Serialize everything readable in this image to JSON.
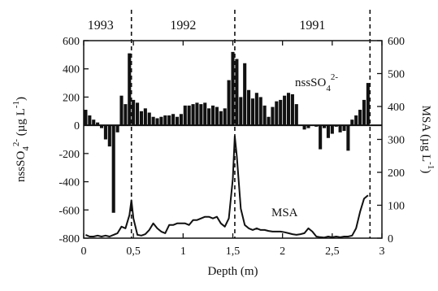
{
  "chart_data": {
    "type": "bar+line",
    "x_label": "Depth (m)",
    "x_ticks": [
      "0",
      "0,5",
      "1",
      "1,5",
      "2",
      "2,5",
      "3"
    ],
    "x_tick_values": [
      0,
      0.5,
      1,
      1.5,
      2,
      2.5,
      3
    ],
    "xlim": [
      0,
      3
    ],
    "left_axis": {
      "label_parts": [
        "nssSO",
        "4",
        "2-",
        " (µg L",
        "-1",
        ")"
      ],
      "ticks": [
        "-800",
        "-600",
        "-400",
        "-200",
        "0",
        "200",
        "400",
        "600"
      ],
      "tick_values": [
        -800,
        -600,
        -400,
        -200,
        0,
        200,
        400,
        600
      ],
      "ylim": [
        -800,
        600
      ]
    },
    "right_axis": {
      "label": "MSA (µg L",
      "label_sup": "-1",
      "label_end": ")",
      "ticks": [
        "0",
        "100",
        "200",
        "300",
        "400",
        "500",
        "600"
      ],
      "tick_values": [
        0,
        100,
        200,
        300,
        400,
        500,
        600
      ],
      "ylim": [
        0,
        600
      ]
    },
    "year_labels": [
      "1993",
      "1992",
      "1991"
    ],
    "year_label_x": [
      0.17,
      1.0,
      2.3
    ],
    "year_boundaries": [
      0.48,
      1.52,
      2.88
    ],
    "annotations": {
      "nss_label": "nssSO",
      "nss_sub": "4",
      "nss_sup": "2-",
      "msa_label": "MSA"
    },
    "series": [
      {
        "name": "nssSO4 2-",
        "kind": "bars",
        "axis": "left",
        "bar_width": 0.04,
        "x": [
          0.02,
          0.06,
          0.1,
          0.14,
          0.18,
          0.22,
          0.26,
          0.3,
          0.34,
          0.38,
          0.42,
          0.46,
          0.5,
          0.54,
          0.58,
          0.62,
          0.66,
          0.7,
          0.74,
          0.78,
          0.82,
          0.86,
          0.9,
          0.94,
          0.98,
          1.02,
          1.06,
          1.1,
          1.14,
          1.18,
          1.22,
          1.26,
          1.3,
          1.34,
          1.38,
          1.42,
          1.46,
          1.5,
          1.54,
          1.58,
          1.62,
          1.66,
          1.7,
          1.74,
          1.78,
          1.82,
          1.86,
          1.9,
          1.94,
          1.98,
          2.02,
          2.06,
          2.1,
          2.14,
          2.18,
          2.22,
          2.26,
          2.3,
          2.34,
          2.38,
          2.42,
          2.46,
          2.5,
          2.54,
          2.58,
          2.62,
          2.66,
          2.7,
          2.74,
          2.78,
          2.82,
          2.86
        ],
        "y": [
          110,
          70,
          40,
          20,
          -20,
          -100,
          -150,
          -620,
          -50,
          210,
          150,
          510,
          180,
          160,
          100,
          120,
          90,
          60,
          50,
          60,
          70,
          70,
          80,
          60,
          80,
          140,
          140,
          150,
          160,
          150,
          160,
          120,
          140,
          130,
          100,
          120,
          320,
          520,
          470,
          200,
          440,
          250,
          190,
          230,
          200,
          140,
          60,
          130,
          170,
          180,
          210,
          230,
          220,
          150,
          0,
          -30,
          -20,
          0,
          -10,
          -170,
          -20,
          -90,
          -60,
          -10,
          -50,
          -40,
          -180,
          40,
          70,
          110,
          180,
          300
        ]
      },
      {
        "name": "MSA",
        "kind": "line",
        "axis": "right",
        "x": [
          0.02,
          0.06,
          0.1,
          0.14,
          0.18,
          0.22,
          0.26,
          0.3,
          0.34,
          0.38,
          0.42,
          0.46,
          0.48,
          0.5,
          0.54,
          0.58,
          0.62,
          0.66,
          0.7,
          0.74,
          0.78,
          0.82,
          0.86,
          0.9,
          0.94,
          0.98,
          1.02,
          1.06,
          1.1,
          1.14,
          1.18,
          1.22,
          1.26,
          1.3,
          1.34,
          1.38,
          1.42,
          1.46,
          1.5,
          1.52,
          1.54,
          1.58,
          1.62,
          1.66,
          1.7,
          1.74,
          1.78,
          1.82,
          1.86,
          1.9,
          1.94,
          1.98,
          2.02,
          2.06,
          2.1,
          2.14,
          2.18,
          2.22,
          2.26,
          2.3,
          2.34,
          2.38,
          2.42,
          2.46,
          2.5,
          2.54,
          2.58,
          2.62,
          2.66,
          2.7,
          2.74,
          2.78,
          2.82,
          2.86
        ],
        "y": [
          10,
          5,
          5,
          8,
          5,
          8,
          5,
          10,
          15,
          35,
          30,
          70,
          115,
          60,
          10,
          8,
          12,
          25,
          45,
          30,
          20,
          15,
          40,
          40,
          45,
          45,
          45,
          40,
          55,
          55,
          60,
          65,
          65,
          60,
          65,
          45,
          35,
          60,
          180,
          310,
          250,
          90,
          40,
          30,
          25,
          30,
          25,
          25,
          22,
          20,
          20,
          20,
          18,
          15,
          12,
          10,
          12,
          15,
          30,
          20,
          5,
          3,
          2,
          5,
          3,
          5,
          3,
          5,
          5,
          8,
          30,
          80,
          120,
          130
        ]
      }
    ]
  }
}
